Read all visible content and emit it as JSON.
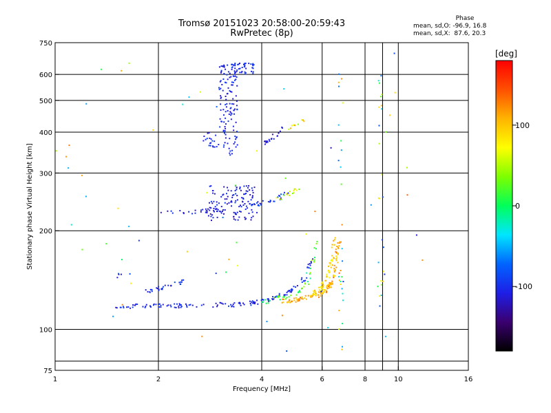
{
  "title_line1": "Tromsø 20151023 20:58:00-20:59:43",
  "title_line2": "RwPretec (8p)",
  "phase_stats": {
    "heading": "Phase",
    "line_o": "mean, sd,O: -96.9, 16.8",
    "line_x": "mean, sd,X:  87.6, 20.3"
  },
  "colors": {
    "background": "#ffffff",
    "axis": "#000000",
    "grid": "#000000"
  },
  "colorbar": {
    "label": "[deg]",
    "ticks": [
      {
        "value": 100,
        "label": "100"
      },
      {
        "value": 0,
        "label": "0"
      },
      {
        "value": -100,
        "label": "-100"
      }
    ],
    "range": [
      -180,
      180
    ],
    "stops": [
      "#000000",
      "#3a006f",
      "#1e1ee6",
      "#0064ff",
      "#00e6ff",
      "#00ff5a",
      "#7dff00",
      "#ffff00",
      "#ffb400",
      "#ff5000",
      "#ff0000"
    ]
  },
  "chart_data": {
    "type": "scatter",
    "xlabel": "Frequency [MHz]",
    "ylabel": "Stationary phase Virtual Height [km]",
    "x_scale": "log",
    "y_scale": "log",
    "xlim": [
      1,
      16
    ],
    "ylim": [
      75,
      750
    ],
    "grid": true,
    "x_ticks": [
      {
        "value": 1,
        "label": "1"
      },
      {
        "value": 2,
        "label": "2"
      },
      {
        "value": 4,
        "label": "4"
      },
      {
        "value": 6,
        "label": "6"
      },
      {
        "value": 8,
        "label": "8"
      },
      {
        "value": 10,
        "label": "10"
      },
      {
        "value": 16,
        "label": "16"
      }
    ],
    "y_ticks": [
      {
        "value": 75,
        "label": "75"
      },
      {
        "value": 100,
        "label": "100"
      },
      {
        "value": 200,
        "label": "200"
      },
      {
        "value": 300,
        "label": "300"
      },
      {
        "value": 400,
        "label": "400"
      },
      {
        "value": 500,
        "label": "500"
      },
      {
        "value": 600,
        "label": "600"
      },
      {
        "value": 750,
        "label": "750"
      }
    ],
    "x_gridlines": [
      1,
      2,
      4,
      6,
      8,
      9,
      10,
      16
    ],
    "y_gridlines": [
      75,
      80,
      100,
      200,
      300,
      400,
      500,
      600,
      750
    ],
    "trace_groups": [
      {
        "kind": "curve",
        "f": [
          1.5,
          1.6,
          1.8,
          2.0,
          2.3,
          2.6,
          3.0,
          3.3,
          3.7,
          4.0,
          4.4,
          4.8,
          5.1,
          5.4,
          5.6
        ],
        "h": [
          117,
          117,
          118,
          118,
          118,
          118,
          119,
          119,
          120,
          122,
          125,
          130,
          137,
          145,
          165
        ],
        "n": 150,
        "phase": -105,
        "spread": 15
      },
      {
        "kind": "curve",
        "f": [
          4.0,
          4.4,
          4.8,
          5.1,
          5.4,
          5.6,
          5.8
        ],
        "h": [
          121,
          124,
          126,
          130,
          137,
          150,
          190
        ],
        "n": 45,
        "phase": 20,
        "spread": 35
      },
      {
        "kind": "curve",
        "f": [
          4.6,
          5.0,
          5.4,
          5.8,
          6.1,
          6.3,
          6.5,
          6.6,
          6.7
        ],
        "h": [
          122,
          123,
          125,
          127,
          130,
          135,
          145,
          160,
          190
        ],
        "n": 120,
        "phase": 110,
        "spread": 25
      },
      {
        "kind": "curve",
        "f": [
          5.5,
          5.8,
          6.0,
          6.2,
          6.4,
          6.5
        ],
        "h": [
          128,
          130,
          135,
          143,
          160,
          190
        ],
        "n": 60,
        "phase": 90,
        "spread": 25
      },
      {
        "kind": "curve",
        "f": [
          1.8,
          2.0,
          2.2,
          2.4
        ],
        "h": [
          130,
          133,
          137,
          140
        ],
        "n": 30,
        "phase": -100,
        "spread": 15
      },
      {
        "kind": "curve",
        "f": [
          1.5,
          1.65
        ],
        "h": [
          145,
          150
        ],
        "n": 5,
        "phase": -95,
        "spread": 30
      },
      {
        "kind": "curve",
        "f": [
          2.0,
          2.3,
          2.6,
          2.8,
          3.0
        ],
        "h": [
          228,
          228,
          229,
          230,
          235
        ],
        "n": 25,
        "phase": -110,
        "spread": 15
      },
      {
        "kind": "cloud",
        "f": [
          2.8,
          3.9
        ],
        "h": [
          215,
          275
        ],
        "n": 130,
        "phase": -110,
        "spread": 18
      },
      {
        "kind": "curve",
        "f": [
          3.7,
          4.0,
          4.4,
          4.8
        ],
        "h": [
          238,
          243,
          250,
          262
        ],
        "n": 30,
        "phase": -95,
        "spread": 20
      },
      {
        "kind": "curve",
        "f": [
          4.4,
          4.8,
          5.2
        ],
        "h": [
          250,
          258,
          268
        ],
        "n": 15,
        "phase": 60,
        "spread": 30
      },
      {
        "kind": "cloud",
        "f": [
          3.0,
          3.4
        ],
        "h": [
          340,
          650
        ],
        "n": 130,
        "phase": -105,
        "spread": 15
      },
      {
        "kind": "cloud",
        "f": [
          3.2,
          3.8
        ],
        "h": [
          600,
          650
        ],
        "n": 40,
        "phase": -100,
        "spread": 15
      },
      {
        "kind": "cloud",
        "f": [
          2.7,
          3.0
        ],
        "h": [
          360,
          400
        ],
        "n": 20,
        "phase": -100,
        "spread": 15
      },
      {
        "kind": "curve",
        "f": [
          4.0,
          4.3,
          4.6
        ],
        "h": [
          365,
          385,
          410
        ],
        "n": 20,
        "phase": -110,
        "spread": 15
      },
      {
        "kind": "curve",
        "f": [
          4.6,
          5.0,
          5.5
        ],
        "h": [
          400,
          420,
          440
        ],
        "n": 10,
        "phase": 80,
        "spread": 40
      },
      {
        "kind": "column",
        "f": [
          6.7,
          6.9
        ],
        "h": [
          80,
          680
        ],
        "n": 30,
        "phase": 30,
        "spread": 110
      },
      {
        "kind": "column",
        "f": [
          8.7,
          9.1
        ],
        "h": [
          100,
          620
        ],
        "n": 25,
        "phase": 0,
        "spread": 110
      },
      {
        "kind": "scatter",
        "f": [
          1.0,
          13.0
        ],
        "h": [
          85,
          700
        ],
        "n": 60,
        "phase": 0,
        "spread": 140
      }
    ]
  }
}
